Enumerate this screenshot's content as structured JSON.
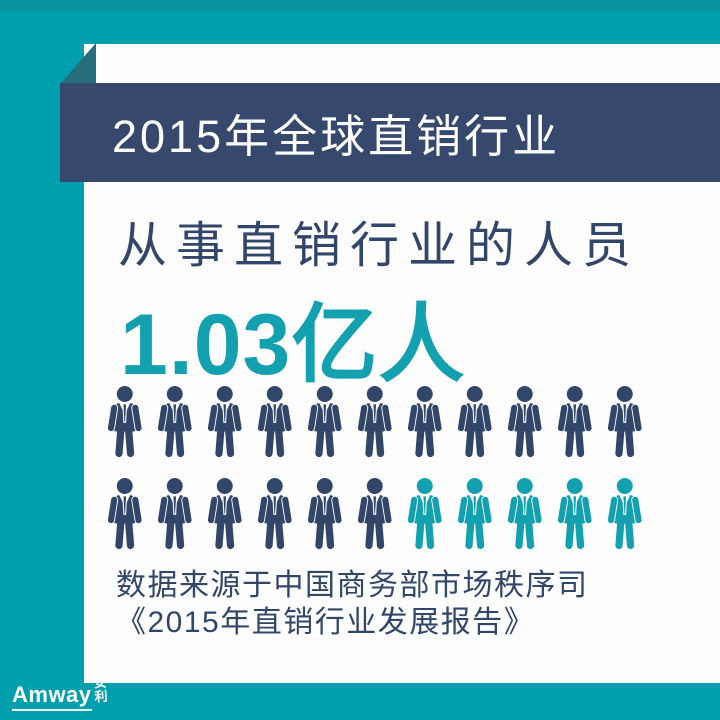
{
  "colors": {
    "background_teal": "#009fae",
    "top_strip_teal": "#0b92a1",
    "card_white": "#fdfdfe",
    "banner_navy": "#36486c",
    "text_navy": "#32466a",
    "accent_teal": "#13a1b0",
    "fold_teal": "#266e7b"
  },
  "banner": {
    "title": "2015年全球直销行业"
  },
  "stats": {
    "headline": "从事直销行业的人员",
    "figure": "1.03亿人"
  },
  "source": {
    "line1": "数据来源于中国商务部市场秩序司",
    "line2": "《2015年直销行业发展报告》"
  },
  "logo": {
    "brand": "Amway",
    "cjk": [
      "安",
      "利"
    ]
  },
  "chart_data": {
    "type": "pictograph",
    "title": "2015年全球直销行业",
    "metric_label": "从事直销行业的人员",
    "value": 1.03,
    "unit": "亿人",
    "value_text": "1.03亿人",
    "icon": "businessman-with-tie",
    "rows": [
      {
        "navy_count": 11,
        "teal_count": 0
      },
      {
        "navy_count": 6,
        "teal_count": 5
      }
    ],
    "total_icons": 22,
    "navy_icons": 17,
    "teal_icons": 5,
    "legend": {
      "navy": "#32466a",
      "teal": "#13a1b0"
    },
    "source": "数据来源于中国商务部市场秩序司《2015年直销行业发展报告》"
  }
}
